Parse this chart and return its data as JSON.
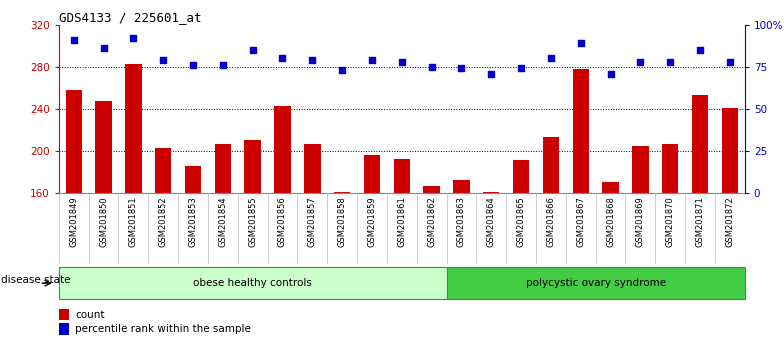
{
  "title": "GDS4133 / 225601_at",
  "samples": [
    "GSM201849",
    "GSM201850",
    "GSM201851",
    "GSM201852",
    "GSM201853",
    "GSM201854",
    "GSM201855",
    "GSM201856",
    "GSM201857",
    "GSM201858",
    "GSM201859",
    "GSM201861",
    "GSM201862",
    "GSM201863",
    "GSM201864",
    "GSM201865",
    "GSM201866",
    "GSM201867",
    "GSM201868",
    "GSM201869",
    "GSM201870",
    "GSM201871",
    "GSM201872"
  ],
  "bar_values": [
    258,
    247,
    283,
    203,
    186,
    207,
    210,
    243,
    207,
    161,
    196,
    192,
    167,
    172,
    161,
    191,
    213,
    278,
    170,
    205,
    207,
    253,
    241
  ],
  "blue_pct": [
    91,
    86,
    92,
    79,
    76,
    76,
    85,
    80,
    79,
    73,
    79,
    78,
    75,
    74,
    71,
    74,
    80,
    89,
    71,
    78,
    78,
    85,
    78
  ],
  "bar_color": "#cc0000",
  "dot_color": "#0000cc",
  "ylim_left": [
    160,
    320
  ],
  "ylim_right": [
    0,
    100
  ],
  "yticks_left": [
    160,
    200,
    240,
    280,
    320
  ],
  "yticks_right": [
    0,
    25,
    50,
    75,
    100
  ],
  "ytick_right_labels": [
    "0",
    "25",
    "50",
    "75",
    "100%"
  ],
  "hlines": [
    200,
    240,
    280
  ],
  "group1_count": 13,
  "group1_label": "obese healthy controls",
  "group2_label": "polycystic ovary syndrome",
  "group1_color": "#ccffcc",
  "group2_color": "#44cc44",
  "disease_state_label": "disease state",
  "legend_bar_label": "count",
  "legend_dot_label": "percentile rank within the sample",
  "bg_color": "#ffffff",
  "tick_bg_color": "#dddddd"
}
